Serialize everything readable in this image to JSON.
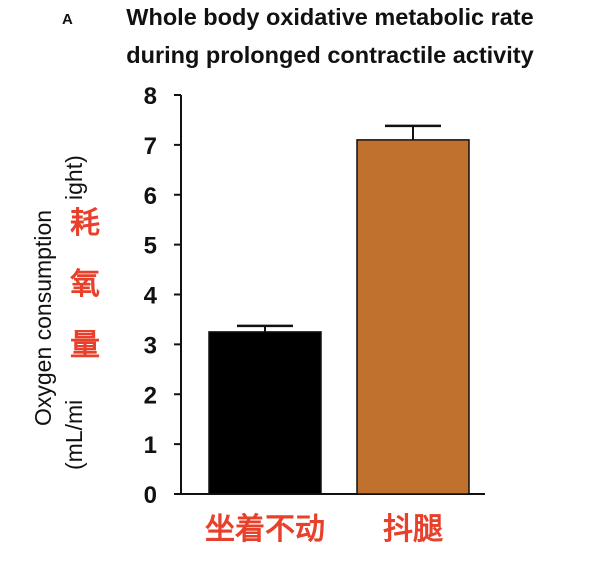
{
  "panel_label": "A",
  "chart_data": {
    "type": "bar",
    "title_lines": [
      "Whole body oxidative metabolic rate",
      "during prolonged contractile activity"
    ],
    "ylabel_line1": "Oxygen consumption",
    "ylabel_line2": "(mL/mi",
    "ylabel_fragment": "ight)",
    "ylabel_cn": [
      "耗",
      "氧",
      "量"
    ],
    "categories": [
      "坐着不动",
      "抖腿"
    ],
    "values": [
      3.25,
      7.1
    ],
    "errors": [
      0.12,
      0.28
    ],
    "bar_colors": [
      "#000000",
      "#c0712e"
    ],
    "category_color": "#e8402a",
    "ylim": [
      0,
      8
    ],
    "yticks": [
      "0",
      "1",
      "2",
      "3",
      "4",
      "5",
      "6",
      "7",
      "8"
    ]
  }
}
